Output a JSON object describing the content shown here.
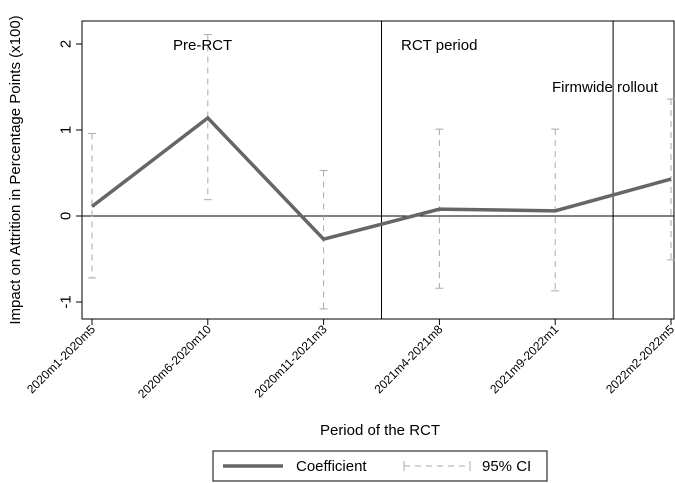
{
  "chart_data": {
    "type": "line",
    "xlabel": "Period of the RCT",
    "ylabel": "Impact on Attrition in Percentage Points (x100)",
    "categories": [
      "2020m1-2020m5",
      "2020m6-2020m10",
      "2020m11-2021m3",
      "2021m4-2021m8",
      "2021m9-2022m1",
      "2022m2-2022m5"
    ],
    "ylim": [
      -1.15,
      2.3
    ],
    "yticks": [
      "2",
      "1",
      "0",
      "-1"
    ],
    "ytick_values": [
      2,
      1,
      0,
      -1
    ],
    "grid": false,
    "reference_line_y": 0,
    "series": [
      {
        "name": "Coefficient",
        "values": [
          0.11,
          1.14,
          -0.27,
          0.08,
          0.06,
          0.43
        ]
      }
    ],
    "ci": {
      "name": "95% CI",
      "lower": [
        -0.72,
        0.19,
        -1.08,
        -0.84,
        -0.87,
        -0.51
      ],
      "upper": [
        0.96,
        2.11,
        0.53,
        1.01,
        1.01,
        1.36
      ]
    },
    "period_breaks": [
      2.5,
      4.5
    ],
    "annotations": [
      "Pre-RCT",
      "RCT period",
      "Firmwide rollout"
    ],
    "legend_position": "bottom",
    "colors": {
      "line": "#666666",
      "ci": "#aaaaaa",
      "axis": "#000000"
    }
  }
}
